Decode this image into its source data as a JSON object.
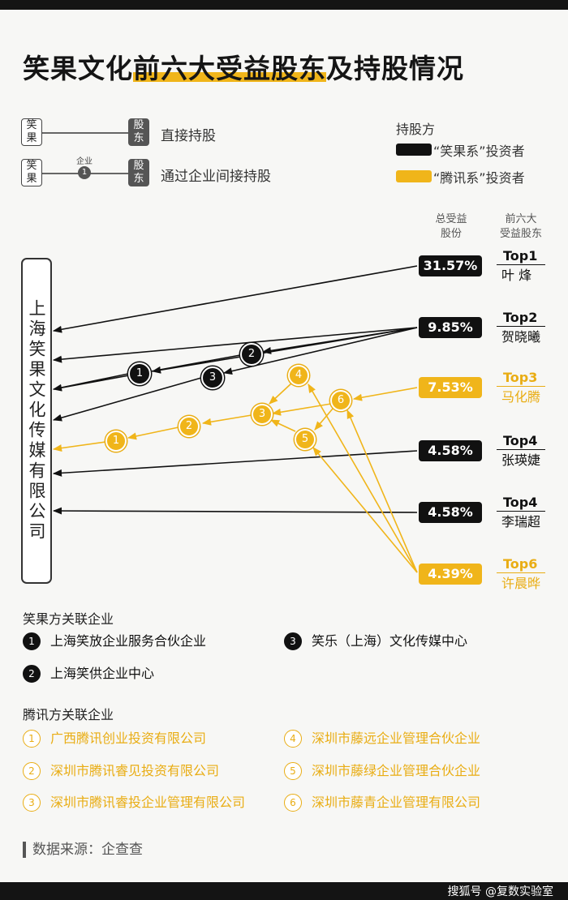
{
  "title": {
    "part1": "笑果文化",
    "part2": "前六大受益股东",
    "part3": "及持股情况"
  },
  "legend": {
    "box_xiaoguo": "笑果",
    "box_gudong": "股东",
    "direct": "直接持股",
    "via_label": "企业",
    "via_num": "1",
    "indirect": "通过企业间接持股",
    "holder_title": "持股方",
    "series_black": "“笑果系”投资者",
    "series_yellow": "“腾讯系”投资者",
    "color_black": "#111111",
    "color_yellow": "#f0b51a"
  },
  "company": "上海笑果文化传媒有限公司",
  "col_heads": {
    "share": "总受益\n股份",
    "rank": "前六大\n受益股东"
  },
  "shareholders": [
    {
      "pct": "31.57%",
      "rank": "Top1",
      "name": "叶 烽",
      "group": "black"
    },
    {
      "pct": "9.85%",
      "rank": "Top2",
      "name": "贺晓曦",
      "group": "black"
    },
    {
      "pct": "7.53%",
      "rank": "Top3",
      "name": "马化腾",
      "group": "yellow"
    },
    {
      "pct": "4.58%",
      "rank": "Top4",
      "name": "张瑛婕",
      "group": "black"
    },
    {
      "pct": "4.58%",
      "rank": "Top4",
      "name": "李瑞超",
      "group": "black"
    },
    {
      "pct": "4.39%",
      "rank": "Top6",
      "name": "许晨晔",
      "group": "yellow"
    }
  ],
  "nodes_black": [
    "1",
    "2",
    "3"
  ],
  "nodes_yellow": [
    "1",
    "2",
    "3",
    "4",
    "5",
    "6"
  ],
  "sect_black": "笑果方关联企业",
  "sect_yellow": "腾讯方关联企业",
  "ents_black": [
    {
      "n": "1",
      "name": "上海笑放企业服务合伙企业"
    },
    {
      "n": "2",
      "name": "上海笑供企业中心"
    },
    {
      "n": "3",
      "name": "笑乐（上海）文化传媒中心"
    }
  ],
  "ents_yellow": [
    {
      "n": "1",
      "name": "广西腾讯创业投资有限公司"
    },
    {
      "n": "2",
      "name": "深圳市腾讯睿见投资有限公司"
    },
    {
      "n": "3",
      "name": "深圳市腾讯睿投企业管理有限公司"
    },
    {
      "n": "4",
      "name": "深圳市藤远企业管理合伙企业"
    },
    {
      "n": "5",
      "name": "深圳市藤绿企业管理合伙企业"
    },
    {
      "n": "6",
      "name": "深圳市藤青企业管理有限公司"
    }
  ],
  "source": "数据来源：企查查",
  "watermark": "搜狐号 @复数实验室"
}
